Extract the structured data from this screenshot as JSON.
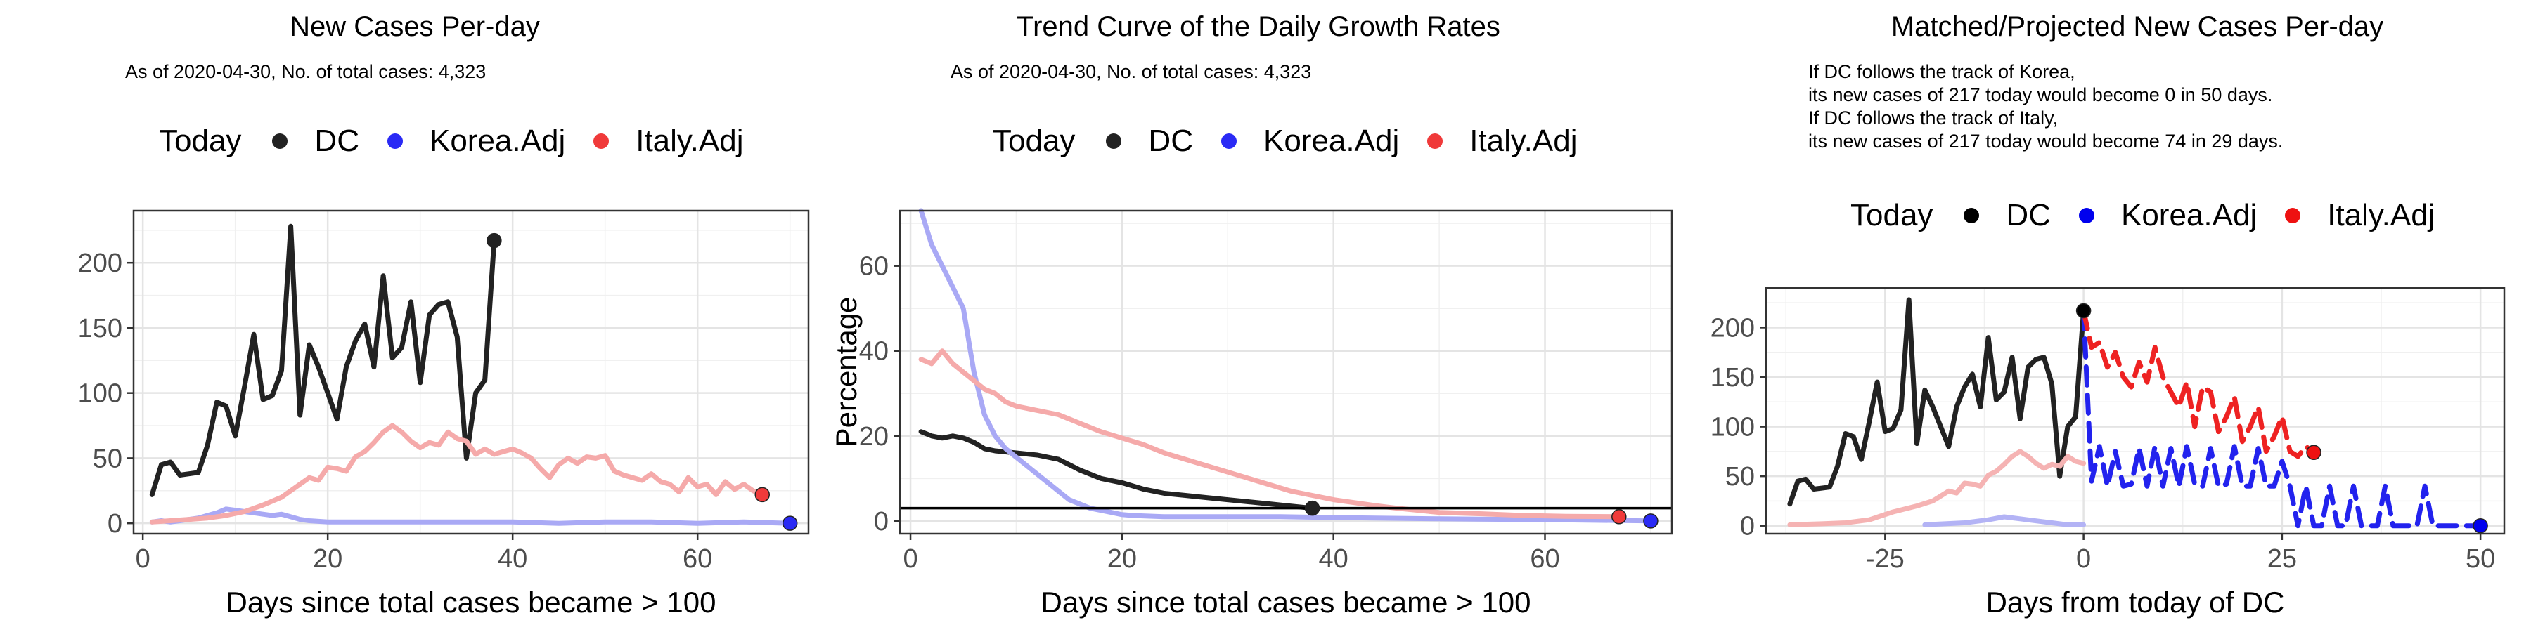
{
  "panels": [
    {
      "title": "New Cases Per-day",
      "subtitle": "As of 2020-04-30, No. of total cases: 4,323",
      "legend_title": "Today",
      "legend_items": [
        {
          "label": "DC",
          "color": "#222222"
        },
        {
          "label": "Korea.Adj",
          "color": "#2a2af5"
        },
        {
          "label": "Italy.Adj",
          "color": "#f03a3a"
        }
      ]
    },
    {
      "title": "Trend Curve of the Daily Growth Rates",
      "subtitle": "As of 2020-04-30, No. of total cases: 4,323",
      "legend_title": "Today",
      "legend_items": [
        {
          "label": "DC",
          "color": "#222222"
        },
        {
          "label": "Korea.Adj",
          "color": "#2a2af5"
        },
        {
          "label": "Italy.Adj",
          "color": "#f03a3a"
        }
      ]
    },
    {
      "title": "Matched/Projected New Cases Per-day",
      "subtitle": "If DC follows the track of Korea,\nits new cases of 217 today would become 0 in 50 days.\nIf DC follows the track of Italy,\nits new cases of 217 today would become 74 in 29 days.",
      "legend_title": "Today",
      "legend_items": [
        {
          "label": "DC",
          "color": "#000000"
        },
        {
          "label": "Korea.Adj",
          "color": "#0000ee"
        },
        {
          "label": "Italy.Adj",
          "color": "#ee1111"
        }
      ]
    }
  ],
  "chart_data": [
    {
      "type": "line",
      "title": "New Cases Per-day",
      "xlabel": "Days since total cases became > 100",
      "ylabel": "",
      "xlim": [
        -1,
        72
      ],
      "ylim": [
        -8,
        240
      ],
      "xticks": [
        0,
        20,
        40,
        60
      ],
      "yticks": [
        0,
        50,
        100,
        150,
        200
      ],
      "grid": true,
      "series": [
        {
          "name": "DC",
          "color": "#222222",
          "x": [
            1,
            2,
            3,
            4,
            5,
            6,
            7,
            8,
            9,
            10,
            11,
            12,
            13,
            14,
            15,
            16,
            17,
            18,
            19,
            20,
            21,
            22,
            23,
            24,
            25,
            26,
            27,
            28,
            29,
            30,
            31,
            32,
            33,
            34,
            35,
            36,
            37,
            38
          ],
          "y": [
            22,
            45,
            47,
            37,
            38,
            39,
            60,
            93,
            90,
            67,
            105,
            145,
            95,
            98,
            117,
            228,
            83,
            137,
            120,
            100,
            80,
            120,
            140,
            153,
            120,
            190,
            127,
            135,
            170,
            108,
            160,
            168,
            170,
            143,
            50,
            100,
            110,
            217
          ]
        },
        {
          "name": "Korea.Adj",
          "color": "#a9a9f5",
          "x": [
            1,
            2,
            3,
            4,
            5,
            6,
            7,
            8,
            9,
            10,
            11,
            12,
            13,
            14,
            15,
            16,
            17,
            18,
            20,
            25,
            30,
            35,
            40,
            45,
            50,
            55,
            60,
            65,
            70
          ],
          "y": [
            1,
            2,
            1,
            2,
            3,
            4,
            6,
            8,
            11,
            10,
            9,
            8,
            7,
            6,
            7,
            5,
            3,
            2,
            1,
            1,
            1,
            1,
            1,
            0,
            1,
            1,
            0,
            1,
            0
          ]
        },
        {
          "name": "Italy.Adj",
          "color": "#f5aaaa",
          "x": [
            1,
            3,
            5,
            7,
            9,
            11,
            13,
            15,
            16,
            17,
            18,
            19,
            20,
            21,
            22,
            23,
            24,
            25,
            26,
            27,
            28,
            29,
            30,
            31,
            32,
            33,
            34,
            35,
            36,
            37,
            38,
            39,
            40,
            41,
            42,
            43,
            44,
            45,
            46,
            47,
            48,
            49,
            50,
            51,
            52,
            53,
            54,
            55,
            56,
            57,
            58,
            59,
            60,
            61,
            62,
            63,
            64,
            65,
            66,
            67
          ],
          "y": [
            1,
            2,
            3,
            4,
            6,
            9,
            14,
            20,
            25,
            30,
            35,
            33,
            43,
            42,
            40,
            51,
            55,
            62,
            70,
            75,
            70,
            63,
            58,
            62,
            60,
            70,
            65,
            63,
            53,
            57,
            53,
            55,
            57,
            54,
            50,
            42,
            35,
            45,
            50,
            46,
            51,
            50,
            52,
            40,
            37,
            35,
            33,
            38,
            32,
            30,
            24,
            35,
            28,
            30,
            22,
            32,
            26,
            30,
            25,
            22
          ]
        }
      ],
      "today_points": [
        {
          "name": "DC",
          "x": 38,
          "y": 217
        },
        {
          "name": "Korea.Adj",
          "x": 70,
          "y": 0
        },
        {
          "name": "Italy.Adj",
          "x": 67,
          "y": 22
        }
      ]
    },
    {
      "type": "line",
      "title": "Trend Curve of the Daily Growth Rates",
      "xlabel": "Days since total cases became > 100",
      "ylabel": "Percentage",
      "xlim": [
        -1,
        72
      ],
      "ylim": [
        -3,
        73
      ],
      "xticks": [
        0,
        20,
        40,
        60
      ],
      "yticks": [
        0,
        20,
        40,
        60
      ],
      "grid": true,
      "hline": 3,
      "series": [
        {
          "name": "DC",
          "color": "#222222",
          "x": [
            1,
            2,
            3,
            4,
            5,
            6,
            7,
            8,
            10,
            12,
            14,
            16,
            18,
            20,
            22,
            24,
            26,
            28,
            30,
            32,
            34,
            36,
            38
          ],
          "y": [
            21,
            20,
            19.5,
            20,
            19.5,
            18.5,
            17,
            16.5,
            16,
            15.5,
            14.5,
            12,
            10,
            9,
            7.5,
            6.5,
            6,
            5.5,
            5,
            4.5,
            4,
            3.5,
            3
          ]
        },
        {
          "name": "Korea.Adj",
          "color": "#a9a9f5",
          "x": [
            1,
            2,
            3,
            4,
            5,
            6,
            7,
            8,
            9,
            10,
            11,
            12,
            13,
            14,
            15,
            16,
            17,
            18,
            19,
            20,
            21,
            22,
            24,
            26,
            30,
            35,
            40,
            50,
            60,
            70
          ],
          "y": [
            73,
            65,
            60,
            55,
            50,
            35,
            25,
            20,
            17,
            15,
            13,
            11,
            9,
            7,
            5,
            4,
            3,
            2.5,
            2,
            1.5,
            1.3,
            1.2,
            1,
            1,
            1,
            1,
            0.8,
            0.5,
            0.3,
            0
          ]
        },
        {
          "name": "Italy.Adj",
          "color": "#f5aaaa",
          "x": [
            1,
            2,
            3,
            4,
            5,
            6,
            7,
            8,
            9,
            10,
            12,
            14,
            16,
            18,
            20,
            22,
            24,
            26,
            28,
            30,
            32,
            34,
            36,
            38,
            40,
            42,
            44,
            46,
            48,
            50,
            54,
            58,
            62,
            67
          ],
          "y": [
            38,
            37,
            40,
            37,
            35,
            33,
            31,
            30,
            28,
            27,
            26,
            25,
            23,
            21,
            19.5,
            18,
            16,
            14.5,
            13,
            11.5,
            10,
            8.5,
            7,
            6,
            5,
            4.3,
            3.6,
            3,
            2.5,
            2,
            1.7,
            1.3,
            1.1,
            1
          ]
        }
      ],
      "today_points": [
        {
          "name": "DC",
          "x": 38,
          "y": 3
        },
        {
          "name": "Korea.Adj",
          "x": 70,
          "y": 0
        },
        {
          "name": "Italy.Adj",
          "x": 67,
          "y": 1
        }
      ]
    },
    {
      "type": "line",
      "title": "Matched/Projected New Cases Per-day",
      "xlabel": "Days from today of DC",
      "ylabel": "",
      "xlim": [
        -40,
        53
      ],
      "ylim": [
        -8,
        240
      ],
      "xticks": [
        -25,
        0,
        25,
        50
      ],
      "yticks": [
        0,
        50,
        100,
        150,
        200
      ],
      "grid": true,
      "series": [
        {
          "name": "DC",
          "color": "#222222",
          "x": [
            -37,
            -36,
            -35,
            -34,
            -33,
            -32,
            -31,
            -30,
            -29,
            -28,
            -27,
            -26,
            -25,
            -24,
            -23,
            -22,
            -21,
            -20,
            -19,
            -18,
            -17,
            -16,
            -15,
            -14,
            -13,
            -12,
            -11,
            -10,
            -9,
            -8,
            -7,
            -6,
            -5,
            -4,
            -3,
            -2,
            -1,
            0
          ],
          "y": [
            22,
            45,
            47,
            37,
            38,
            39,
            60,
            93,
            90,
            67,
            105,
            145,
            95,
            98,
            117,
            228,
            83,
            137,
            120,
            100,
            80,
            120,
            140,
            153,
            120,
            190,
            127,
            135,
            170,
            108,
            160,
            168,
            170,
            143,
            50,
            100,
            110,
            217
          ]
        },
        {
          "name": "Korea.Adj",
          "color": "#b3b3f5",
          "x": [
            -20,
            -15,
            -12,
            -10,
            -8,
            -6,
            -4,
            -2,
            0
          ],
          "y": [
            1,
            3,
            6,
            9,
            7,
            5,
            3,
            1,
            1
          ]
        },
        {
          "name": "Italy.Adj",
          "color": "#f5b3b3",
          "x": [
            -37,
            -33,
            -30,
            -27,
            -24,
            -21,
            -19,
            -18,
            -17,
            -16,
            -15,
            -14,
            -13,
            -12,
            -11,
            -10,
            -9,
            -8,
            -7,
            -6,
            -5,
            -4,
            -3,
            -2,
            -1,
            0
          ],
          "y": [
            1,
            2,
            3,
            6,
            14,
            20,
            25,
            30,
            35,
            33,
            43,
            42,
            40,
            51,
            55,
            62,
            70,
            75,
            70,
            63,
            58,
            62,
            60,
            70,
            65,
            63
          ]
        },
        {
          "name": "Korea.Adj projection",
          "color": "#2222ee",
          "dashed": true,
          "x": [
            0,
            1,
            2,
            3,
            4,
            5,
            6,
            7,
            8,
            9,
            10,
            11,
            12,
            13,
            14,
            15,
            16,
            17,
            18,
            19,
            20,
            21,
            22,
            23,
            24,
            25,
            26,
            27,
            28,
            29,
            30,
            31,
            32,
            33,
            34,
            35,
            36,
            37,
            38,
            39,
            40,
            41,
            42,
            43,
            44,
            45,
            46,
            47,
            48,
            49,
            50
          ],
          "y": [
            217,
            45,
            80,
            40,
            75,
            40,
            42,
            78,
            40,
            80,
            40,
            78,
            40,
            80,
            42,
            40,
            78,
            40,
            42,
            80,
            40,
            40,
            78,
            40,
            40,
            65,
            40,
            0,
            40,
            0,
            0,
            40,
            0,
            0,
            40,
            0,
            0,
            0,
            40,
            0,
            0,
            0,
            0,
            40,
            0,
            0,
            0,
            0,
            0,
            0,
            0
          ]
        },
        {
          "name": "Italy.Adj projection",
          "color": "#ee2222",
          "dashed": true,
          "x": [
            0,
            1,
            2,
            3,
            4,
            5,
            6,
            7,
            8,
            9,
            10,
            11,
            12,
            13,
            14,
            15,
            16,
            17,
            18,
            19,
            20,
            21,
            22,
            23,
            24,
            25,
            26,
            27,
            28,
            29
          ],
          "y": [
            217,
            180,
            185,
            160,
            175,
            150,
            140,
            165,
            145,
            180,
            150,
            135,
            120,
            145,
            100,
            140,
            135,
            95,
            110,
            130,
            85,
            100,
            120,
            75,
            90,
            110,
            75,
            70,
            80,
            74
          ]
        }
      ],
      "today_points": [
        {
          "name": "DC",
          "x": 0,
          "y": 217
        },
        {
          "name": "Korea.Adj",
          "x": 50,
          "y": 0
        },
        {
          "name": "Italy.Adj",
          "x": 29,
          "y": 74
        }
      ]
    }
  ]
}
